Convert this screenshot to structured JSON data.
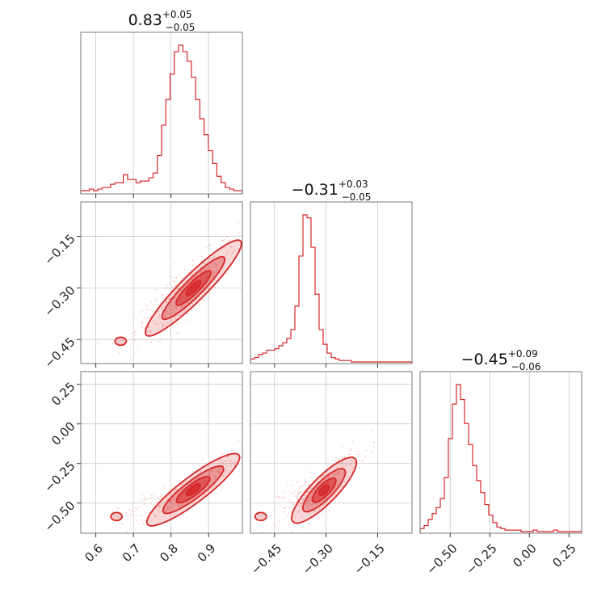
{
  "chart_data": {
    "type": "corner",
    "color": "#d62728",
    "params": [
      {
        "range": [
          0.56,
          0.99
        ],
        "ticks": [
          0.6,
          0.7,
          0.8,
          0.9
        ],
        "tick_labels": [
          "0.6",
          "0.7",
          "0.8",
          "0.9"
        ],
        "median": "0.83",
        "upper": "+0.05",
        "lower": "−0.05"
      },
      {
        "range": [
          -0.52,
          -0.05
        ],
        "ticks": [
          -0.45,
          -0.3,
          -0.15
        ],
        "tick_labels": [
          "−0.45",
          "−0.30",
          "−0.15"
        ],
        "median": "−0.31",
        "upper": "+0.03",
        "lower": "−0.05"
      },
      {
        "range": [
          -0.69,
          0.33
        ],
        "ticks": [
          -0.5,
          -0.25,
          0.0,
          0.25
        ],
        "tick_labels": [
          "−0.50",
          "−0.25",
          "0.00",
          "0.25"
        ],
        "median": "−0.45",
        "upper": "+0.09",
        "lower": "−0.06"
      }
    ],
    "histograms": [
      [
        1,
        1,
        2,
        1,
        2,
        3,
        3,
        5,
        6,
        6,
        11,
        8,
        8,
        6,
        7,
        7,
        9,
        12,
        23,
        42,
        58,
        74,
        88,
        92,
        88,
        82,
        72,
        58,
        46,
        36,
        26,
        18,
        10,
        6,
        3,
        2,
        1,
        1
      ],
      [
        2,
        3,
        5,
        6,
        8,
        8,
        9,
        11,
        13,
        16,
        22,
        38,
        72,
        100,
        98,
        78,
        46,
        22,
        12,
        6,
        3,
        2,
        1,
        1,
        1,
        0,
        0,
        0,
        0,
        0,
        0,
        0,
        0,
        0,
        0,
        0,
        0,
        0,
        0,
        0
      ],
      [
        2,
        4,
        8,
        12,
        16,
        22,
        36,
        62,
        85,
        98,
        88,
        72,
        58,
        44,
        34,
        26,
        18,
        11,
        6,
        3,
        2,
        1,
        1,
        1,
        1,
        0,
        0,
        0,
        1,
        0,
        0,
        0,
        0,
        1,
        0,
        0,
        0,
        0,
        0,
        0
      ]
    ],
    "pairs": [
      {
        "row": 1,
        "col": 0,
        "x": [
          0.666,
          0.84,
          0.972
        ],
        "y": [
          -0.455,
          -0.322,
          -0.178
        ],
        "spread_y": 0.035
      },
      {
        "row": 2,
        "col": 0,
        "x": [
          0.655,
          0.84,
          0.968
        ],
        "y": [
          -0.585,
          -0.45,
          -0.22
        ],
        "spread_y": 0.045
      },
      {
        "row": 2,
        "col": 1,
        "x": [
          -0.49,
          -0.32,
          -0.225
        ],
        "y": [
          -0.585,
          -0.45,
          -0.24
        ],
        "spread_y": 0.06
      }
    ]
  }
}
